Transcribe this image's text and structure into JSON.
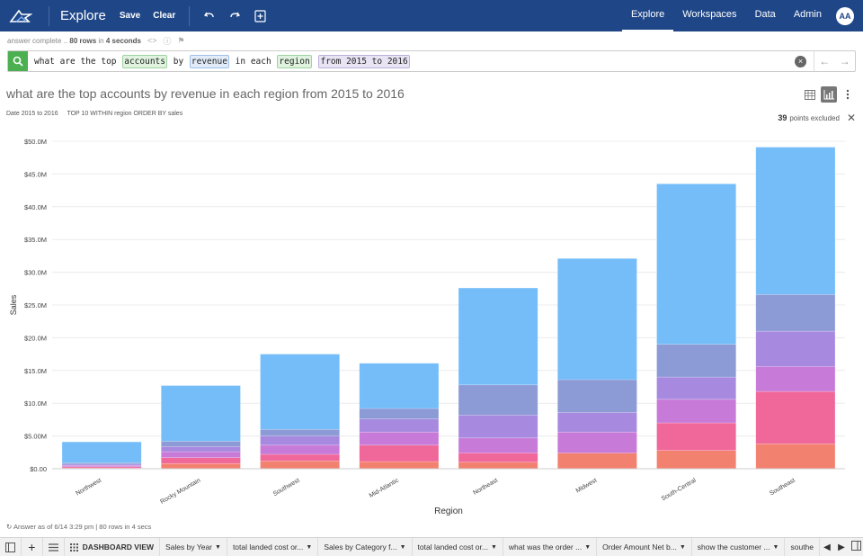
{
  "topbar": {
    "app_title": "Explore",
    "save_label": "Save",
    "clear_label": "Clear",
    "nav": [
      "Explore",
      "Workspaces",
      "Data",
      "Admin"
    ],
    "active_nav": "Explore",
    "avatar": "AA",
    "icons": [
      "logo-icon",
      "undo-icon",
      "redo-icon",
      "add-icon"
    ]
  },
  "status": {
    "prefix": "answer complete ..",
    "rows": "80 rows",
    "in_label": "in",
    "time": "4 seconds"
  },
  "search": {
    "tokens": [
      {
        "text": "what are the top ",
        "kind": "plain"
      },
      {
        "text": "accounts",
        "kind": "measure"
      },
      {
        "text": " by ",
        "kind": "plain"
      },
      {
        "text": "revenue",
        "kind": "attr"
      },
      {
        "text": " in each ",
        "kind": "plain"
      },
      {
        "text": "region",
        "kind": "measure"
      },
      {
        "text": " ",
        "kind": "plain"
      },
      {
        "text": "from 2015 to 2016",
        "kind": "filter"
      }
    ]
  },
  "answer": {
    "title": "what are the top accounts by revenue in each region from 2015 to 2016",
    "filter_date": "Date 2015 to 2016",
    "filter_top": "TOP 10 WITHIN region ORDER BY sales",
    "excluded_count": "39",
    "excluded_label": "points excluded",
    "answered_as_of": "Answer as of 6/14 3:29 pm | 80 rows in 4 secs"
  },
  "chart_data": {
    "type": "bar",
    "stacked": true,
    "xlabel": "Region",
    "ylabel": "Sales",
    "ylim": [
      0,
      50
    ],
    "y_unit": "M",
    "y_ticks": [
      "$0.00",
      "$5.00M",
      "$10.0M",
      "$15.0M",
      "$20.0M",
      "$25.0M",
      "$30.0M",
      "$35.0M",
      "$40.0M",
      "$45.0M",
      "$50.0M"
    ],
    "grid": true,
    "categories": [
      "Northwest",
      "Rocky Mountain",
      "Southwest",
      "Mid-Atlantic",
      "Northeast",
      "Midwest",
      "South-Central",
      "Southeast"
    ],
    "series": [
      {
        "color": "#f38170",
        "values": [
          0.1,
          0.8,
          1.2,
          1.1,
          1.0,
          2.4,
          2.8,
          3.8
        ]
      },
      {
        "color": "#f0679a",
        "values": [
          0.2,
          0.9,
          1.0,
          2.5,
          1.4,
          0.0,
          4.2,
          8.0
        ]
      },
      {
        "color": "#c87ad8",
        "values": [
          0.2,
          0.9,
          1.4,
          2.0,
          2.3,
          3.2,
          3.6,
          3.8
        ]
      },
      {
        "color": "#a789e0",
        "values": [
          0.2,
          0.8,
          1.4,
          2.0,
          3.5,
          3.0,
          3.4,
          5.4
        ]
      },
      {
        "color": "#8c9ad6",
        "values": [
          0.2,
          0.8,
          1.0,
          1.6,
          4.6,
          5.0,
          5.0,
          5.6
        ]
      },
      {
        "color": "#74bdf9",
        "values": [
          3.2,
          8.5,
          11.5,
          6.9,
          14.8,
          18.5,
          24.5,
          22.5
        ]
      }
    ]
  },
  "bottom_tabs": [
    "Sales by Year",
    "total landed cost or...",
    "Sales by Category f...",
    "total landed cost or...",
    "what was the order ...",
    "Order Amount Net b...",
    "show the customer ...",
    "southe"
  ],
  "dashboard_view_label": "DASHBOARD VIEW"
}
